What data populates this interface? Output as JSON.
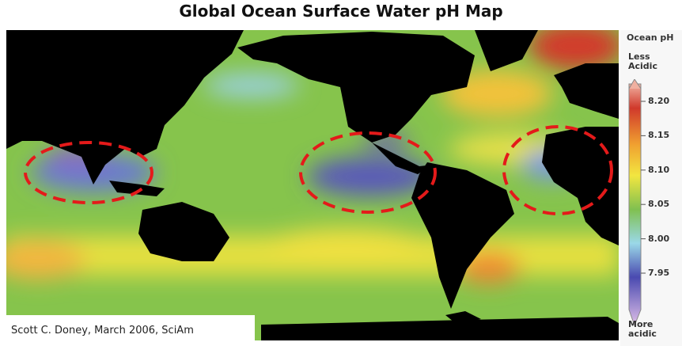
{
  "title": "Global Ocean Surface Water pH Map",
  "legend": {
    "title": "Ocean pH",
    "top_label": "Less Acidic",
    "bottom_label": "More acidic",
    "ticks": [
      "8.20",
      "8.15",
      "8.10",
      "8.05",
      "8.00",
      "7.95"
    ]
  },
  "credit": "Scott C. Doney, March 2006, SciAm"
}
